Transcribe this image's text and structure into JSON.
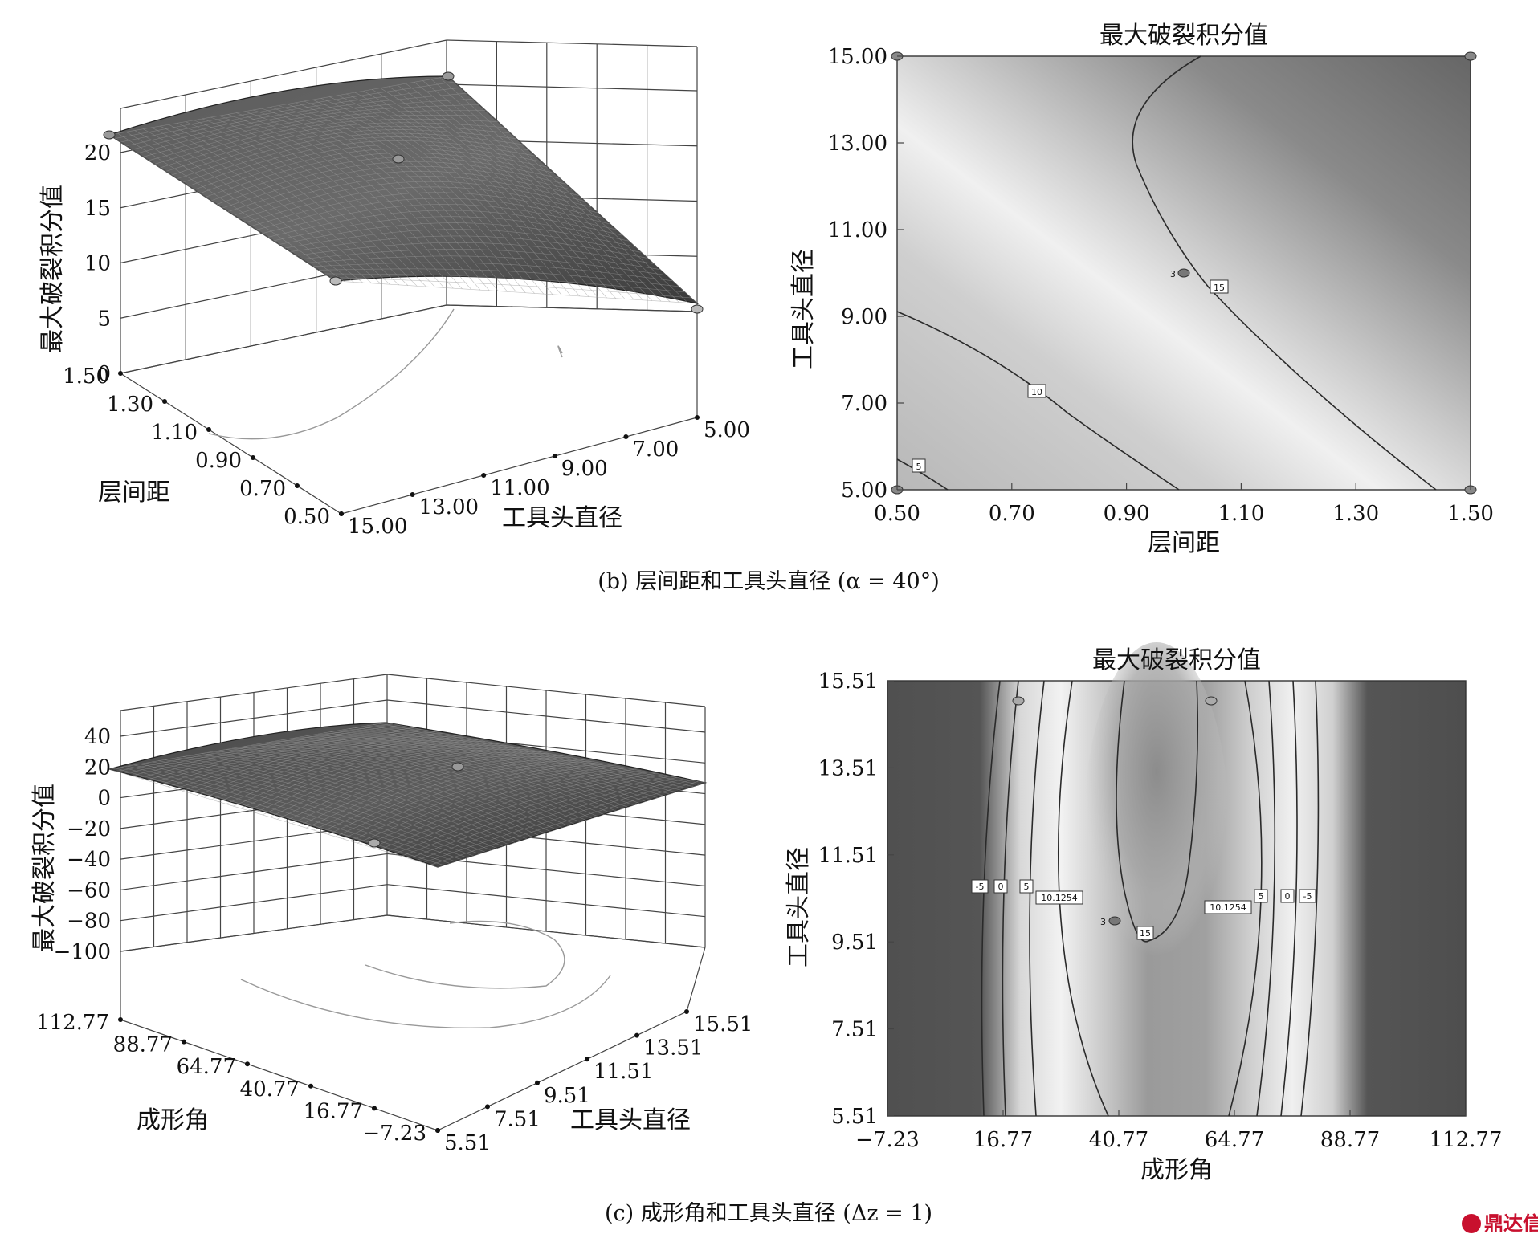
{
  "chart_data": [
    {
      "type": "surface",
      "panel": "b-3d",
      "zlabel": "最大破裂积分值",
      "xlabel": "层间距",
      "ylabel": "工具头直径",
      "x_ticks": [
        "1.50",
        "1.30",
        "1.10",
        "0.90",
        "0.70",
        "0.50"
      ],
      "y_ticks": [
        "15.00",
        "13.00",
        "11.00",
        "9.00",
        "7.00",
        "5.00"
      ],
      "z_ticks": [
        "20",
        "15",
        "10",
        "5",
        "0"
      ],
      "xlim": [
        0.5,
        1.5
      ],
      "ylim": [
        5.0,
        15.0
      ],
      "zlim": [
        0,
        20
      ]
    },
    {
      "type": "heatmap",
      "panel": "b-contour",
      "title": "最大破裂积分值",
      "xlabel": "层间距",
      "ylabel": "工具头直径",
      "x_ticks": [
        "0.50",
        "0.70",
        "0.90",
        "1.10",
        "1.30",
        "1.50"
      ],
      "y_ticks": [
        "15.00",
        "13.00",
        "11.00",
        "9.00",
        "7.00",
        "5.00"
      ],
      "xlim": [
        0.5,
        1.5
      ],
      "ylim": [
        5.0,
        15.0
      ],
      "contour_labels": [
        "5",
        "10",
        "15"
      ],
      "design_point_label": "3",
      "design_point": [
        1.0,
        10.0
      ]
    },
    {
      "type": "surface",
      "panel": "c-3d",
      "zlabel": "最大破裂积分值",
      "xlabel": "成形角",
      "ylabel": "工具头直径",
      "x_ticks": [
        "112.77",
        "88.77",
        "64.77",
        "40.77",
        "16.77",
        "−7.23"
      ],
      "y_ticks": [
        "5.51",
        "7.51",
        "9.51",
        "11.51",
        "13.51",
        "15.51"
      ],
      "z_ticks": [
        "40",
        "20",
        "0",
        "−20",
        "−40",
        "−60",
        "−80",
        "−100"
      ],
      "xlim": [
        -7.23,
        112.77
      ],
      "ylim": [
        5.51,
        15.51
      ],
      "zlim": [
        -100,
        40
      ]
    },
    {
      "type": "heatmap",
      "panel": "c-contour",
      "title": "最大破裂积分值",
      "xlabel": "成形角",
      "ylabel": "工具头直径",
      "x_ticks": [
        "−7.23",
        "16.77",
        "40.77",
        "64.77",
        "88.77",
        "112.77"
      ],
      "y_ticks": [
        "15.51",
        "13.51",
        "11.51",
        "9.51",
        "7.51",
        "5.51"
      ],
      "xlim": [
        -7.23,
        112.77
      ],
      "ylim": [
        5.51,
        15.51
      ],
      "contour_labels_left": [
        "-5",
        "0",
        "5",
        "10.1254"
      ],
      "contour_labels_right": [
        "10.1254",
        "5",
        "0",
        "-5"
      ],
      "center_label": "15",
      "design_point_label": "3",
      "design_point": [
        40.77,
        10.51
      ]
    }
  ],
  "captions": {
    "b": "(b) 层间距和工具头直径 (α = 40°)",
    "c": "(c) 成形角和工具头直径 (Δz = 1)"
  },
  "watermark": "鼎达信"
}
